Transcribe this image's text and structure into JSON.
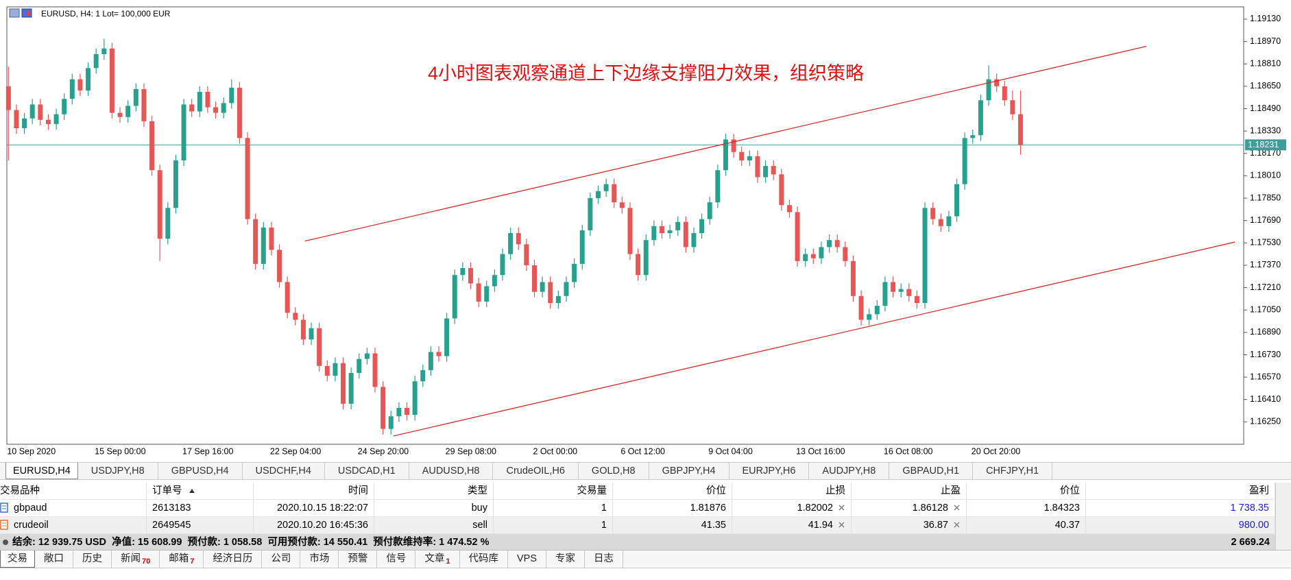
{
  "chart_data": {
    "type": "candlestick",
    "title": "EURUSD, H4:  1 Lot= 100,000 EUR",
    "annotation": "4小时图表观察通道上下边缘支撑阻力效果，组织策略",
    "categories": [
      "10 Sep 2020",
      null,
      null,
      null,
      null,
      null,
      null,
      null,
      null,
      null,
      null,
      "15 Sep 00:00",
      null,
      null,
      null,
      null,
      null,
      null,
      null,
      null,
      null,
      null,
      "17 Sep 16:00",
      null,
      null,
      null,
      null,
      null,
      null,
      null,
      null,
      null,
      null,
      "22 Sep 04:00",
      null,
      null,
      null,
      null,
      null,
      null,
      null,
      null,
      null,
      null,
      "24 Sep 20:00",
      null,
      null,
      null,
      null,
      null,
      null,
      null,
      null,
      null,
      null,
      "29 Sep 08:00",
      null,
      null,
      null,
      null,
      null,
      null,
      null,
      null,
      null,
      null,
      "2 Oct 00:00",
      null,
      null,
      null,
      null,
      null,
      null,
      null,
      null,
      null,
      null,
      "6 Oct 12:00",
      null,
      null,
      null,
      null,
      null,
      null,
      null,
      null,
      null,
      null,
      "9 Oct 04:00",
      null,
      null,
      null,
      null,
      null,
      null,
      null,
      null,
      null,
      null,
      "13 Oct 16:00",
      null,
      null,
      null,
      null,
      null,
      null,
      null,
      null,
      null,
      null,
      "16 Oct 08:00",
      null,
      null,
      null,
      null,
      null,
      null,
      null,
      null,
      null,
      null,
      "20 Oct 20:00",
      null,
      null,
      null,
      null,
      null,
      null
    ],
    "ohlc": [
      [
        1.1865,
        1.1879,
        1.1812,
        1.1848
      ],
      [
        1.1848,
        1.1852,
        1.1831,
        1.1835
      ],
      [
        1.1835,
        1.1846,
        1.1831,
        1.1842
      ],
      [
        1.1842,
        1.1856,
        1.1838,
        1.1852
      ],
      [
        1.1852,
        1.1856,
        1.1837,
        1.1841
      ],
      [
        1.1841,
        1.1845,
        1.1834,
        1.1838
      ],
      [
        1.1838,
        1.1849,
        1.1834,
        1.1845
      ],
      [
        1.1845,
        1.186,
        1.1841,
        1.1856
      ],
      [
        1.1856,
        1.1874,
        1.1852,
        1.187
      ],
      [
        1.187,
        1.1874,
        1.1858,
        1.1862
      ],
      [
        1.1862,
        1.1882,
        1.1858,
        1.1878
      ],
      [
        1.1878,
        1.1892,
        1.1874,
        1.1888
      ],
      [
        1.1888,
        1.1899,
        1.1884,
        1.1892
      ],
      [
        1.1892,
        1.1896,
        1.1842,
        1.1846
      ],
      [
        1.1846,
        1.185,
        1.1839,
        1.1843
      ],
      [
        1.1843,
        1.1855,
        1.1839,
        1.1851
      ],
      [
        1.1851,
        1.1867,
        1.1847,
        1.1863
      ],
      [
        1.1863,
        1.1867,
        1.1836,
        1.184
      ],
      [
        1.184,
        1.1844,
        1.1801,
        1.1805
      ],
      [
        1.1805,
        1.1809,
        1.174,
        1.1756
      ],
      [
        1.1756,
        1.1782,
        1.1752,
        1.1778
      ],
      [
        1.1778,
        1.1816,
        1.1774,
        1.1812
      ],
      [
        1.1812,
        1.1856,
        1.1808,
        1.1852
      ],
      [
        1.1852,
        1.1856,
        1.1843,
        1.1847
      ],
      [
        1.1847,
        1.1865,
        1.1843,
        1.1861
      ],
      [
        1.1861,
        1.1865,
        1.1846,
        1.185
      ],
      [
        1.185,
        1.1854,
        1.1842,
        1.1846
      ],
      [
        1.1846,
        1.1857,
        1.1842,
        1.1853
      ],
      [
        1.1853,
        1.187,
        1.1849,
        1.1864
      ],
      [
        1.1864,
        1.1868,
        1.1824,
        1.1828
      ],
      [
        1.1828,
        1.1832,
        1.1766,
        1.177
      ],
      [
        1.177,
        1.1774,
        1.1734,
        1.1738
      ],
      [
        1.1738,
        1.1768,
        1.1734,
        1.1764
      ],
      [
        1.1764,
        1.1768,
        1.1744,
        1.1748
      ],
      [
        1.1748,
        1.1752,
        1.1721,
        1.1725
      ],
      [
        1.1725,
        1.1729,
        1.1699,
        1.1703
      ],
      [
        1.1703,
        1.1707,
        1.1694,
        1.1698
      ],
      [
        1.1698,
        1.1702,
        1.168,
        1.1684
      ],
      [
        1.1684,
        1.1696,
        1.168,
        1.1692
      ],
      [
        1.1692,
        1.1696,
        1.1661,
        1.1665
      ],
      [
        1.1665,
        1.1669,
        1.1654,
        1.1658
      ],
      [
        1.1658,
        1.1671,
        1.1654,
        1.1667
      ],
      [
        1.1667,
        1.1671,
        1.1634,
        1.1638
      ],
      [
        1.1638,
        1.1664,
        1.1634,
        1.166
      ],
      [
        1.166,
        1.1674,
        1.1656,
        1.167
      ],
      [
        1.167,
        1.1678,
        1.1666,
        1.1674
      ],
      [
        1.1674,
        1.1678,
        1.1646,
        1.165
      ],
      [
        1.165,
        1.1654,
        1.1616,
        1.162
      ],
      [
        1.162,
        1.1633,
        1.1616,
        1.1629
      ],
      [
        1.1629,
        1.1639,
        1.1625,
        1.1635
      ],
      [
        1.1635,
        1.1639,
        1.1626,
        1.163
      ],
      [
        1.163,
        1.1658,
        1.1626,
        1.1654
      ],
      [
        1.1654,
        1.1666,
        1.165,
        1.1662
      ],
      [
        1.1662,
        1.1679,
        1.1658,
        1.1675
      ],
      [
        1.1675,
        1.1679,
        1.1668,
        1.1672
      ],
      [
        1.1672,
        1.1703,
        1.1668,
        1.1699
      ],
      [
        1.1699,
        1.1734,
        1.1695,
        1.173
      ],
      [
        1.173,
        1.1739,
        1.1726,
        1.1735
      ],
      [
        1.1735,
        1.1739,
        1.172,
        1.1724
      ],
      [
        1.1724,
        1.1728,
        1.1707,
        1.1711
      ],
      [
        1.1711,
        1.1726,
        1.1707,
        1.1722
      ],
      [
        1.1722,
        1.1734,
        1.1718,
        1.173
      ],
      [
        1.173,
        1.1749,
        1.1726,
        1.1745
      ],
      [
        1.1745,
        1.1764,
        1.1741,
        1.176
      ],
      [
        1.176,
        1.1764,
        1.1748,
        1.1752
      ],
      [
        1.1752,
        1.1756,
        1.1733,
        1.1737
      ],
      [
        1.1737,
        1.1741,
        1.1714,
        1.1718
      ],
      [
        1.1718,
        1.1729,
        1.1714,
        1.1725
      ],
      [
        1.1725,
        1.1729,
        1.1706,
        1.171
      ],
      [
        1.171,
        1.1719,
        1.1706,
        1.1715
      ],
      [
        1.1715,
        1.1729,
        1.1711,
        1.1725
      ],
      [
        1.1725,
        1.1742,
        1.1721,
        1.1738
      ],
      [
        1.1738,
        1.1766,
        1.1734,
        1.1762
      ],
      [
        1.1762,
        1.1789,
        1.1758,
        1.1785
      ],
      [
        1.1785,
        1.1794,
        1.1781,
        1.179
      ],
      [
        1.179,
        1.1799,
        1.1786,
        1.1795
      ],
      [
        1.1795,
        1.1799,
        1.1778,
        1.1782
      ],
      [
        1.1782,
        1.1786,
        1.1774,
        1.1778
      ],
      [
        1.1778,
        1.1782,
        1.1741,
        1.1745
      ],
      [
        1.1745,
        1.1749,
        1.1726,
        1.173
      ],
      [
        1.173,
        1.1759,
        1.1726,
        1.1755
      ],
      [
        1.1755,
        1.1769,
        1.1751,
        1.1765
      ],
      [
        1.1765,
        1.1769,
        1.1756,
        1.176
      ],
      [
        1.176,
        1.1766,
        1.1756,
        1.1762
      ],
      [
        1.1762,
        1.1772,
        1.1758,
        1.1768
      ],
      [
        1.1768,
        1.1772,
        1.1746,
        1.175
      ],
      [
        1.175,
        1.1764,
        1.1746,
        1.176
      ],
      [
        1.176,
        1.1774,
        1.1756,
        1.177
      ],
      [
        1.177,
        1.1786,
        1.1766,
        1.1782
      ],
      [
        1.1782,
        1.1809,
        1.1778,
        1.1805
      ],
      [
        1.1805,
        1.1831,
        1.1801,
        1.1827
      ],
      [
        1.1827,
        1.1831,
        1.1814,
        1.1818
      ],
      [
        1.1818,
        1.1822,
        1.1808,
        1.1812
      ],
      [
        1.1812,
        1.1819,
        1.1808,
        1.1815
      ],
      [
        1.1815,
        1.1819,
        1.1796,
        1.18
      ],
      [
        1.18,
        1.1812,
        1.1796,
        1.1808
      ],
      [
        1.1808,
        1.1812,
        1.1798,
        1.1802
      ],
      [
        1.1802,
        1.1806,
        1.1776,
        1.178
      ],
      [
        1.178,
        1.1784,
        1.1771,
        1.1775
      ],
      [
        1.1775,
        1.1779,
        1.1736,
        1.174
      ],
      [
        1.174,
        1.1749,
        1.1736,
        1.1745
      ],
      [
        1.1745,
        1.1749,
        1.1738,
        1.1742
      ],
      [
        1.1742,
        1.1754,
        1.1738,
        1.175
      ],
      [
        1.175,
        1.1759,
        1.1746,
        1.1755
      ],
      [
        1.1755,
        1.1759,
        1.1746,
        1.175
      ],
      [
        1.175,
        1.1754,
        1.1736,
        1.174
      ],
      [
        1.174,
        1.1744,
        1.1711,
        1.1715
      ],
      [
        1.1715,
        1.1719,
        1.1694,
        1.1698
      ],
      [
        1.1698,
        1.1706,
        1.1694,
        1.1702
      ],
      [
        1.1702,
        1.1712,
        1.1698,
        1.1708
      ],
      [
        1.1708,
        1.1729,
        1.1704,
        1.1725
      ],
      [
        1.1725,
        1.1729,
        1.1714,
        1.1718
      ],
      [
        1.1718,
        1.1724,
        1.1714,
        1.172
      ],
      [
        1.172,
        1.1724,
        1.1711,
        1.1715
      ],
      [
        1.1715,
        1.1719,
        1.1706,
        1.171
      ],
      [
        1.171,
        1.1782,
        1.1706,
        1.1778
      ],
      [
        1.1778,
        1.1782,
        1.1766,
        1.177
      ],
      [
        1.177,
        1.1774,
        1.1761,
        1.1765
      ],
      [
        1.1765,
        1.1776,
        1.1761,
        1.1772
      ],
      [
        1.1772,
        1.1799,
        1.1768,
        1.1795
      ],
      [
        1.1795,
        1.1832,
        1.1791,
        1.1828
      ],
      [
        1.1828,
        1.1834,
        1.1824,
        1.183
      ],
      [
        1.183,
        1.1859,
        1.1826,
        1.1855
      ],
      [
        1.1855,
        1.188,
        1.1851,
        1.187
      ],
      [
        1.187,
        1.1874,
        1.1861,
        1.1865
      ],
      [
        1.1865,
        1.1869,
        1.1851,
        1.1855
      ],
      [
        1.1855,
        1.1862,
        1.1841,
        1.1845
      ],
      [
        1.1845,
        1.1862,
        1.1816,
        1.18231
      ]
    ],
    "up_color": "#26a18e",
    "down_color": "#e85555",
    "xlim": [
      -0.2,
      155
    ],
    "ylim": [
      1.1609,
      1.19218
    ],
    "yticks": [
      {
        "value": 1.1913,
        "label": "1.19130"
      },
      {
        "value": 1.1897,
        "label": "1.18970"
      },
      {
        "value": 1.1881,
        "label": "1.18810"
      },
      {
        "value": 1.1865,
        "label": "1.18650"
      },
      {
        "value": 1.1849,
        "label": "1.18490"
      },
      {
        "value": 1.1833,
        "label": "1.18330"
      },
      {
        "value": 1.1817,
        "label": "1.18170"
      },
      {
        "value": 1.1801,
        "label": "1.18010"
      },
      {
        "value": 1.1785,
        "label": "1.17850"
      },
      {
        "value": 1.1769,
        "label": "1.17690"
      },
      {
        "value": 1.1753,
        "label": "1.17530"
      },
      {
        "value": 1.1737,
        "label": "1.17370"
      },
      {
        "value": 1.1721,
        "label": "1.17210"
      },
      {
        "value": 1.1705,
        "label": "1.17050"
      },
      {
        "value": 1.1689,
        "label": "1.16890"
      },
      {
        "value": 1.1673,
        "label": "1.16730"
      },
      {
        "value": 1.1657,
        "label": "1.16570"
      },
      {
        "value": 1.1641,
        "label": "1.16410"
      },
      {
        "value": 1.1625,
        "label": "1.16250"
      }
    ],
    "current_price": 1.18231,
    "current_price_color": "#3f9e9a",
    "trendlines": [
      {
        "x": [
          37.2,
          142.8
        ],
        "y": [
          1.17543,
          1.18936
        ],
        "color": "#d42a2a"
      },
      {
        "x": [
          48.3,
          153.9
        ],
        "y": [
          1.16149,
          1.17536
        ],
        "color": "#d42a2a"
      }
    ]
  },
  "symbol_tabs": [
    "EURUSD,H4",
    "USDJPY,H8",
    "GBPUSD,H4",
    "USDCHF,H4",
    "USDCAD,H1",
    "AUDUSD,H8",
    "CrudeOIL,H6",
    "GOLD,H8",
    "GBPJPY,H4",
    "EURJPY,H6",
    "AUDJPY,H8",
    "GBPAUD,H1",
    "CHFJPY,H1"
  ],
  "active_symbol_tab": 0,
  "trade_table": {
    "headers": [
      "交易品种",
      "订单号",
      "时间",
      "类型",
      "交易量",
      "价位",
      "止损",
      "止盈",
      "价位",
      "盈利"
    ],
    "rows": [
      [
        "gbpaud",
        "2613183",
        "2020.10.15 18:22:07",
        "buy",
        "1",
        "1.81876",
        "1.82002",
        "1.86128",
        "1.84323",
        "1 738.35"
      ],
      [
        "crudeoil",
        "2649545",
        "2020.10.20 16:45:36",
        "sell",
        "1",
        "41.35",
        "41.94",
        "36.87",
        "40.37",
        "980.00"
      ]
    ],
    "summary": "结余: 12 939.75 USD  净值: 15 608.99  预付款: 1 058.58  可用预付款: 14 550.41  预付款维持率: 1 474.52 %",
    "total": "2 669.24"
  },
  "bottom_tabs": [
    {
      "label": "交易"
    },
    {
      "label": "敞口"
    },
    {
      "label": "历史"
    },
    {
      "label": "新闻",
      "badge": "70"
    },
    {
      "label": "邮箱",
      "badge": "7"
    },
    {
      "label": "经济日历"
    },
    {
      "label": "公司"
    },
    {
      "label": "市场"
    },
    {
      "label": "预警"
    },
    {
      "label": "信号"
    },
    {
      "label": "文章",
      "badge": "1"
    },
    {
      "label": "代码库"
    },
    {
      "label": "VPS"
    },
    {
      "label": "专家"
    },
    {
      "label": "日志"
    }
  ],
  "active_bottom_tab": 0
}
